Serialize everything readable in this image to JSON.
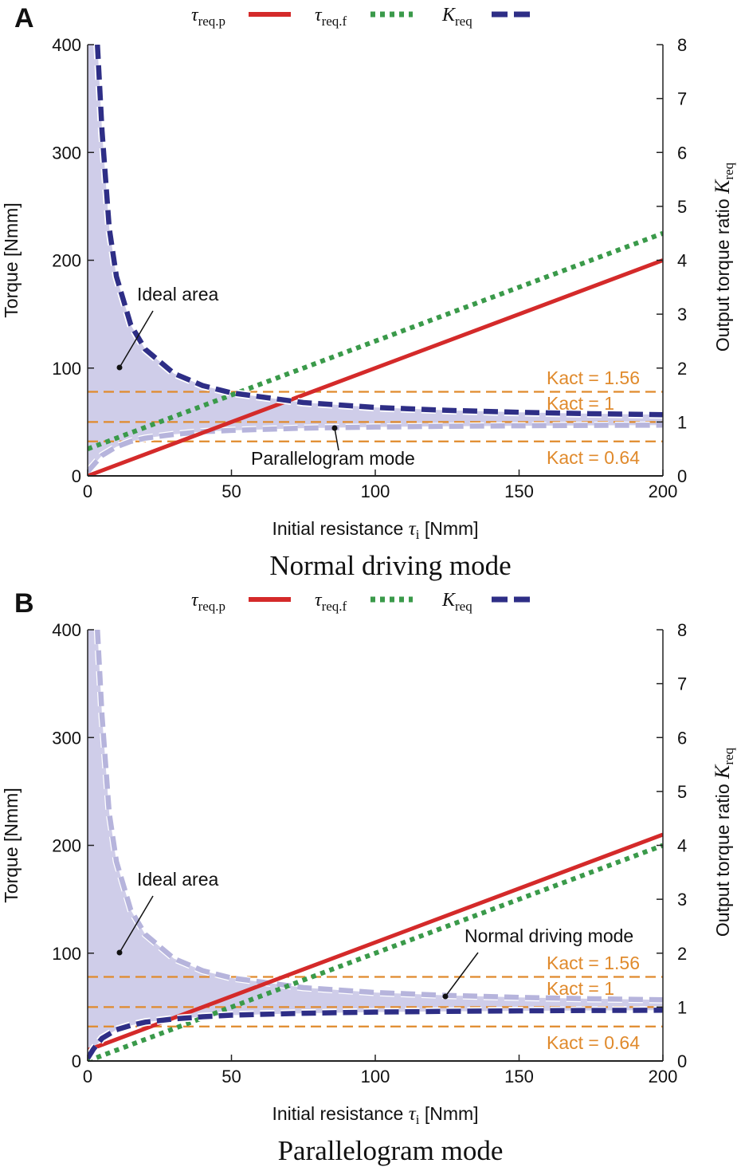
{
  "colors": {
    "tau_req_p": "#d42a2a",
    "tau_req_f": "#3a9a4a",
    "K_req": "#2e2e86",
    "K_req_faded": "#aeacd8",
    "ideal_area": "#cfcde9",
    "K_act": "#e08a2c"
  },
  "chart_data": [
    {
      "panel": "A",
      "type": "line",
      "title": "Normal driving mode",
      "xlabel": {
        "text": "Initial resistance ",
        "sym": "τ",
        "sub": "i",
        "unit": " [Nmm]"
      },
      "ylabel": "Torque [Nmm]",
      "y2label": {
        "text": "Output torque ratio ",
        "sym": "K",
        "sub": "req"
      },
      "xlim": [
        0,
        200
      ],
      "ylim": [
        0,
        400
      ],
      "y2lim": [
        0,
        8
      ],
      "xticks": [
        "0",
        "50",
        "100",
        "150",
        "200"
      ],
      "yticks": [
        "0",
        "100",
        "200",
        "300",
        "400"
      ],
      "y2ticks": [
        "0",
        "1",
        "2",
        "3",
        "4",
        "5",
        "6",
        "7",
        "8"
      ],
      "legend": [
        {
          "sym": "τ",
          "sub": "req.p"
        },
        {
          "sym": "τ",
          "sub": "req.f"
        },
        {
          "sym": "K",
          "sub": "req"
        }
      ],
      "series": [
        {
          "name": "τreq.p",
          "axis": "left",
          "x": [
            0,
            200
          ],
          "y": [
            0,
            200
          ]
        },
        {
          "name": "τreq.f",
          "axis": "left",
          "x": [
            0,
            200
          ],
          "y": [
            25,
            225
          ]
        },
        {
          "name": "Kreq (normal driving)",
          "axis": "right",
          "style": "bold",
          "x": [
            3.4,
            5,
            7.5,
            10,
            15,
            20,
            30,
            40,
            50,
            75,
            100,
            125,
            150,
            175,
            200
          ],
          "y": [
            8.0,
            6.4,
            4.6,
            3.7,
            2.8,
            2.35,
            1.9,
            1.675,
            1.54,
            1.36,
            1.27,
            1.216,
            1.18,
            1.154,
            1.135
          ]
        },
        {
          "name": "Kreq (parallelogram)",
          "axis": "right",
          "style": "faded",
          "x": [
            0,
            2,
            5,
            10,
            15,
            20,
            30,
            40,
            50,
            75,
            100,
            125,
            150,
            175,
            200
          ],
          "y": [
            0.08,
            0.2,
            0.38,
            0.54,
            0.64,
            0.7,
            0.77,
            0.82,
            0.845,
            0.886,
            0.907,
            0.921,
            0.93,
            0.937,
            0.942
          ]
        }
      ],
      "K_act": [
        {
          "value": 1.56,
          "label": "Kact = 1.56"
        },
        {
          "value": 1,
          "label": "Kact = 1"
        },
        {
          "value": 0.64,
          "label": "Kact = 0.64"
        }
      ],
      "annotations": [
        "Ideal area",
        "Parallelogram mode"
      ]
    },
    {
      "panel": "B",
      "type": "line",
      "title": "Parallelogram mode",
      "xlabel": {
        "text": "Initial resistance ",
        "sym": "τ",
        "sub": "i",
        "unit": " [Nmm]"
      },
      "ylabel": "Torque [Nmm]",
      "y2label": {
        "text": "Output torque ratio ",
        "sym": "K",
        "sub": "req"
      },
      "xlim": [
        0,
        200
      ],
      "ylim": [
        0,
        400
      ],
      "y2lim": [
        0,
        8
      ],
      "xticks": [
        "0",
        "50",
        "100",
        "150",
        "200"
      ],
      "yticks": [
        "0",
        "100",
        "200",
        "300",
        "400"
      ],
      "y2ticks": [
        "0",
        "1",
        "2",
        "3",
        "4",
        "5",
        "6",
        "7",
        "8"
      ],
      "legend": [
        {
          "sym": "τ",
          "sub": "req.p"
        },
        {
          "sym": "τ",
          "sub": "req.f"
        },
        {
          "sym": "K",
          "sub": "req"
        }
      ],
      "series": [
        {
          "name": "τreq.p",
          "axis": "left",
          "x": [
            0,
            200
          ],
          "y": [
            10,
            210
          ]
        },
        {
          "name": "τreq.f",
          "axis": "left",
          "x": [
            0,
            200
          ],
          "y": [
            0,
            200
          ]
        },
        {
          "name": "Kreq (normal driving)",
          "axis": "right",
          "style": "faded",
          "x": [
            3.4,
            5,
            7.5,
            10,
            15,
            20,
            30,
            40,
            50,
            75,
            100,
            125,
            150,
            175,
            200
          ],
          "y": [
            8.0,
            6.4,
            4.6,
            3.7,
            2.8,
            2.35,
            1.9,
            1.675,
            1.54,
            1.36,
            1.27,
            1.216,
            1.18,
            1.154,
            1.135
          ]
        },
        {
          "name": "Kreq (parallelogram)",
          "axis": "right",
          "style": "bold",
          "x": [
            0,
            2,
            5,
            10,
            15,
            20,
            30,
            40,
            50,
            75,
            100,
            125,
            150,
            175,
            200
          ],
          "y": [
            0.05,
            0.22,
            0.42,
            0.58,
            0.66,
            0.72,
            0.78,
            0.82,
            0.85,
            0.886,
            0.907,
            0.921,
            0.93,
            0.937,
            0.942
          ]
        }
      ],
      "K_act": [
        {
          "value": 1.56,
          "label": "Kact = 1.56"
        },
        {
          "value": 1,
          "label": "Kact = 1"
        },
        {
          "value": 0.64,
          "label": "Kact = 0.64"
        }
      ],
      "annotations": [
        "Ideal area",
        "Normal driving mode"
      ]
    }
  ]
}
